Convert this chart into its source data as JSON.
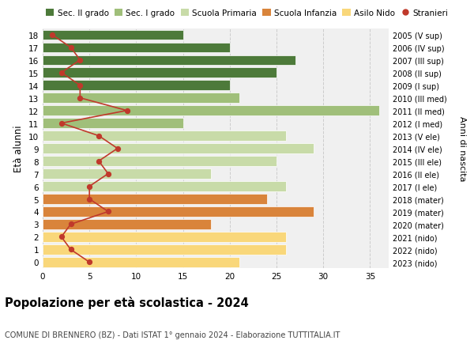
{
  "ages": [
    0,
    1,
    2,
    3,
    4,
    5,
    6,
    7,
    8,
    9,
    10,
    11,
    12,
    13,
    14,
    15,
    16,
    17,
    18
  ],
  "right_labels": [
    "2023 (nido)",
    "2022 (nido)",
    "2021 (nido)",
    "2020 (mater)",
    "2019 (mater)",
    "2018 (mater)",
    "2017 (I ele)",
    "2016 (II ele)",
    "2015 (III ele)",
    "2014 (IV ele)",
    "2013 (V ele)",
    "2012 (I med)",
    "2011 (II med)",
    "2010 (III med)",
    "2009 (I sup)",
    "2008 (II sup)",
    "2007 (III sup)",
    "2006 (IV sup)",
    "2005 (V sup)"
  ],
  "bar_values": [
    21,
    26,
    26,
    18,
    29,
    24,
    26,
    18,
    25,
    29,
    26,
    15,
    36,
    21,
    20,
    25,
    27,
    20,
    15
  ],
  "stranieri": [
    5,
    3,
    2,
    3,
    7,
    5,
    5,
    7,
    6,
    8,
    6,
    2,
    9,
    4,
    4,
    2,
    4,
    3,
    1
  ],
  "bar_colors": [
    "#f9d77a",
    "#f9d77a",
    "#f9d77a",
    "#d9843b",
    "#d9843b",
    "#d9843b",
    "#c8dba8",
    "#c8dba8",
    "#c8dba8",
    "#c8dba8",
    "#c8dba8",
    "#a0bf7a",
    "#a0bf7a",
    "#a0bf7a",
    "#4d7a3a",
    "#4d7a3a",
    "#4d7a3a",
    "#4d7a3a",
    "#4d7a3a"
  ],
  "legend_labels": [
    "Sec. II grado",
    "Sec. I grado",
    "Scuola Primaria",
    "Scuola Infanzia",
    "Asilo Nido",
    "Stranieri"
  ],
  "legend_colors": [
    "#4d7a3a",
    "#a0bf7a",
    "#c8dba8",
    "#d9843b",
    "#f9d77a",
    "#c0392b"
  ],
  "title": "Popolazione per età scolastica - 2024",
  "subtitle": "COMUNE DI BRENNERO (BZ) - Dati ISTAT 1° gennaio 2024 - Elaborazione TUTTITALIA.IT",
  "ylabel_left": "Età alunni",
  "ylabel_right": "Anni di nascita",
  "xlim": [
    0,
    37
  ],
  "background_color": "#ffffff",
  "plot_bg_color": "#f0f0f0",
  "grid_color": "#cccccc",
  "stranieri_color": "#c0392b",
  "bar_height": 0.78
}
